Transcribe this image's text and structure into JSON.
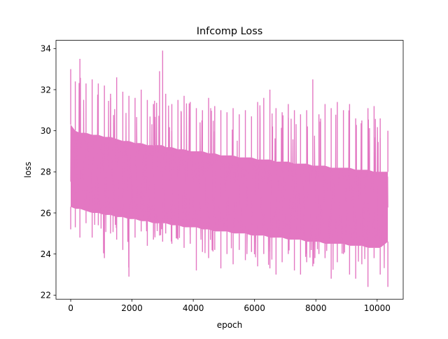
{
  "chart_data": {
    "type": "line",
    "title": "Infcomp Loss",
    "xlabel": "epoch",
    "ylabel": "loss",
    "xlim": [
      -480,
      10850
    ],
    "ylim": [
      21.8,
      34.4
    ],
    "xticks": [
      0,
      2000,
      4000,
      6000,
      8000,
      10000
    ],
    "yticks": [
      22,
      24,
      26,
      28,
      30,
      32,
      34
    ],
    "grid": false,
    "legend": "none",
    "line_color": "#e377c2",
    "series": [
      {
        "x": [
          0,
          150,
          300,
          500,
          700,
          900,
          1100,
          1300,
          1500,
          1700,
          1900,
          2100,
          2300,
          2500,
          2700,
          2900,
          3000,
          3100,
          3300,
          3500,
          3700,
          3900,
          4100,
          4300,
          4500,
          4700,
          4900,
          5100,
          5300,
          5500,
          5700,
          5900,
          6100,
          6300,
          6500,
          6700,
          6900,
          7100,
          7300,
          7500,
          7700,
          7900,
          8100,
          8300,
          8500,
          8700,
          8900,
          9100,
          9300,
          9500,
          9700,
          9900,
          10100,
          10350
        ],
        "y_max": [
          33.0,
          32.4,
          33.5,
          32.3,
          32.5,
          32.3,
          32.2,
          31.8,
          32.6,
          31.9,
          31.7,
          31.6,
          32.0,
          31.5,
          31.3,
          32.9,
          33.9,
          31.8,
          31.3,
          31.5,
          31.7,
          31.4,
          31.1,
          31.0,
          31.6,
          31.2,
          31.0,
          30.9,
          31.1,
          30.8,
          31.0,
          30.7,
          31.4,
          31.6,
          32.0,
          31.1,
          30.9,
          31.3,
          31.0,
          30.8,
          31.0,
          32.5,
          30.8,
          31.3,
          31.1,
          31.4,
          31.0,
          31.3,
          30.6,
          30.5,
          31.1,
          31.2,
          30.6,
          30.0
        ],
        "y_min": [
          25.2,
          25.3,
          24.8,
          25.5,
          24.8,
          25.4,
          23.8,
          25.0,
          24.7,
          24.2,
          22.9,
          24.8,
          25.1,
          24.4,
          24.7,
          24.9,
          24.6,
          25.0,
          24.5,
          24.7,
          24.3,
          24.5,
          23.2,
          24.1,
          23.8,
          24.2,
          23.3,
          24.0,
          23.5,
          24.2,
          23.7,
          24.1,
          23.4,
          24.0,
          23.3,
          23.0,
          23.6,
          24.0,
          23.2,
          23.0,
          23.6,
          23.4,
          24.0,
          23.8,
          22.8,
          23.6,
          24.0,
          23.0,
          22.8,
          23.5,
          22.4,
          23.8,
          23.0,
          22.4
        ],
        "y_typ_high": [
          30.3,
          30.0,
          29.9,
          29.9,
          29.8,
          29.8,
          29.7,
          29.7,
          29.6,
          29.5,
          29.5,
          29.4,
          29.4,
          29.3,
          29.3,
          29.3,
          29.3,
          29.2,
          29.2,
          29.1,
          29.1,
          29.0,
          29.0,
          29.0,
          28.9,
          28.9,
          28.8,
          28.8,
          28.8,
          28.7,
          28.7,
          28.7,
          28.6,
          28.6,
          28.6,
          28.5,
          28.5,
          28.5,
          28.4,
          28.4,
          28.4,
          28.3,
          28.3,
          28.3,
          28.2,
          28.2,
          28.2,
          28.2,
          28.1,
          28.1,
          28.1,
          28.0,
          28.0,
          28.0
        ],
        "y_typ_low": [
          26.3,
          26.2,
          26.2,
          26.1,
          26.0,
          26.0,
          25.9,
          25.9,
          25.8,
          25.8,
          25.7,
          25.7,
          25.6,
          25.6,
          25.5,
          25.5,
          25.5,
          25.5,
          25.4,
          25.4,
          25.3,
          25.3,
          25.3,
          25.2,
          25.2,
          25.1,
          25.1,
          25.1,
          25.0,
          25.0,
          25.0,
          24.9,
          24.9,
          24.9,
          24.8,
          24.8,
          24.8,
          24.7,
          24.7,
          24.7,
          24.6,
          24.6,
          24.6,
          24.5,
          24.5,
          24.5,
          24.5,
          24.4,
          24.4,
          24.4,
          24.3,
          24.3,
          24.3,
          24.6
        ]
      }
    ]
  }
}
